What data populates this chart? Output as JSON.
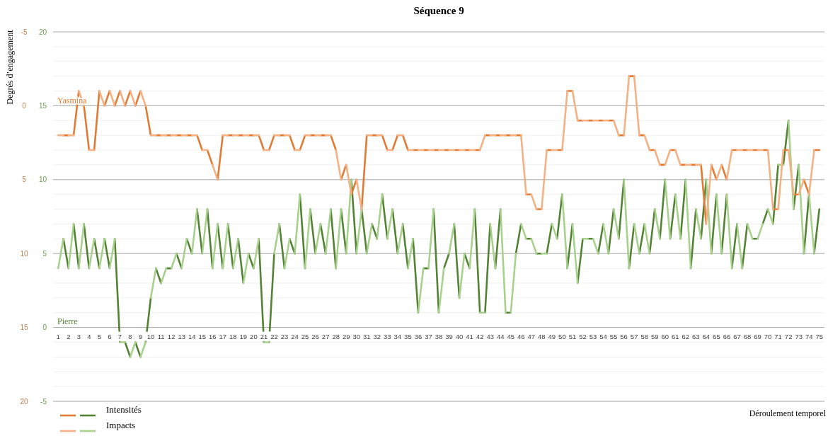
{
  "chart_data": {
    "type": "line",
    "title": "Séquence 9",
    "xlabel": "Déroulement temporel",
    "ylabel": "Degrés d’engagement",
    "xlim": [
      0.5,
      75.5
    ],
    "xticks": [
      1,
      2,
      3,
      4,
      5,
      6,
      7,
      8,
      9,
      10,
      11,
      12,
      13,
      14,
      15,
      16,
      17,
      18,
      19,
      20,
      21,
      22,
      23,
      24,
      25,
      26,
      27,
      28,
      29,
      30,
      31,
      32,
      33,
      34,
      35,
      36,
      37,
      38,
      39,
      40,
      41,
      42,
      43,
      44,
      45,
      46,
      47,
      48,
      49,
      50,
      51,
      52,
      53,
      54,
      55,
      56,
      57,
      58,
      59,
      60,
      61,
      62,
      63,
      64,
      65,
      66,
      67,
      68,
      69,
      70,
      71,
      72,
      73,
      74,
      75
    ],
    "ylim": [
      20,
      -5
    ],
    "yticks": [
      -5,
      {
        "value": -4,
        "label": null
      },
      {
        "value": -3,
        "label": null
      },
      {
        "value": -2,
        "label": null
      },
      {
        "value": -1,
        "label": null
      },
      0,
      {
        "value": 1,
        "label": null
      },
      {
        "value": 2,
        "label": null
      },
      {
        "value": 3,
        "label": null
      },
      {
        "value": 4,
        "label": null
      },
      5,
      {
        "value": 6,
        "label": null
      },
      {
        "value": 7,
        "label": null
      },
      {
        "value": 8,
        "label": null
      },
      {
        "value": 9,
        "label": null
      },
      10,
      {
        "value": 11,
        "label": null
      },
      {
        "value": 12,
        "label": null
      },
      {
        "value": 13,
        "label": null
      },
      {
        "value": 14,
        "label": null
      },
      15,
      {
        "value": 16,
        "label": null
      },
      {
        "value": 17,
        "label": null
      },
      {
        "value": 18,
        "label": null
      },
      {
        "value": 19,
        "label": null
      },
      20
    ],
    "y2lim": [
      -5,
      20
    ],
    "y2ticks": [
      -5,
      0,
      5,
      10,
      15,
      20
    ],
    "grid": "y",
    "legend": "bottom left",
    "line_style": "solid",
    "marker": "none",
    "annotations": [
      "Yasmina",
      "Pierre"
    ],
    "series": [
      {
        "name": "Intensités",
        "color": "#548235",
        "axis": "y2",
        "x": [
          1.5,
          2,
          2.25,
          2.5,
          3,
          3.25,
          3.5,
          4,
          4.25,
          4.5,
          5,
          5.25,
          5.5,
          6,
          6.25,
          6.5,
          7,
          7.25,
          7.5,
          8,
          8.25,
          8.5,
          9,
          9.25,
          9.5,
          10,
          10.25,
          10.5,
          11,
          11.25,
          11.5,
          12,
          12.25,
          12.5,
          13,
          13.25,
          13.5,
          14,
          14.25,
          14.5,
          15,
          15.25,
          15.5,
          16,
          16.25,
          16.5,
          17,
          17.25,
          17.5,
          18,
          18.25,
          18.5,
          19,
          19.25,
          19.5,
          20,
          20.25,
          20.5,
          21,
          21.25,
          21.5,
          22,
          22.25,
          22.5,
          23,
          23.25,
          23.5,
          24,
          24.25,
          24.5,
          25,
          25.25,
          25.5,
          26,
          26.25,
          26.5,
          27,
          27.25,
          27.5,
          28,
          28.25,
          28.5,
          29,
          29.25,
          29.5,
          30,
          30.25,
          30.5,
          31,
          31.25,
          31.5,
          32,
          32.25,
          32.5,
          33,
          33.25,
          33.5,
          34,
          34.25,
          34.5,
          35,
          35.25,
          35.5,
          36,
          36.25,
          36.5,
          37,
          37.25,
          37.5,
          38,
          38.25,
          38.5,
          39,
          39.25,
          39.5,
          40,
          40.25,
          40.5,
          41,
          41.25,
          41.5,
          42,
          42.25,
          42.5,
          43,
          43.25,
          43.5,
          44,
          44.25,
          44.5,
          45,
          45.25,
          45.5,
          46,
          46.25,
          46.5,
          47,
          47.25,
          47.5,
          48,
          48.25,
          48.5,
          49,
          49.25,
          49.5,
          50,
          50.25,
          50.5,
          51,
          51.25,
          51.5,
          52,
          52.25,
          52.5,
          53,
          53.25,
          53.5,
          54,
          54.25,
          54.5,
          55,
          55.25,
          55.5,
          56,
          56.25,
          56.5,
          57,
          57.25,
          57.5,
          58,
          58.25,
          58.5,
          59,
          59.25,
          59.5,
          60,
          60.25,
          60.5,
          61,
          61.25,
          61.5,
          62,
          62.25,
          62.5,
          63,
          63.25,
          63.5,
          64,
          64.25,
          64.5,
          65,
          65.25,
          65.5,
          66,
          66.25,
          66.5,
          67,
          67.25,
          67.5,
          68,
          68.25,
          68.5,
          69,
          69.25,
          69.5,
          70,
          70.25,
          70.5,
          71,
          71.25,
          71.5,
          72,
          72.25,
          72.5,
          73,
          73.25,
          73.5,
          74,
          74.25,
          74.5,
          75
        ],
        "values": [
          6,
          4,
          null,
          7,
          4,
          null,
          7,
          4,
          null,
          6,
          4,
          null,
          6,
          4,
          null,
          6,
          -1,
          null,
          -1,
          -2,
          null,
          -1,
          -2,
          null,
          -1,
          2,
          null,
          4,
          3,
          null,
          4,
          4,
          null,
          5,
          4,
          null,
          6,
          5,
          null,
          8,
          5,
          null,
          8,
          4,
          null,
          7,
          4,
          null,
          7,
          4,
          null,
          6,
          3,
          null,
          5,
          4,
          null,
          6,
          -1,
          null,
          -1,
          5,
          null,
          7,
          4,
          null,
          6,
          5,
          null,
          9,
          4,
          null,
          8,
          5,
          null,
          7,
          5,
          null,
          8,
          4,
          null,
          8,
          5,
          null,
          10,
          5,
          null,
          8,
          5,
          null,
          7,
          6,
          null,
          9,
          6,
          null,
          8,
          5,
          null,
          7,
          4,
          null,
          6,
          1,
          null,
          4,
          4,
          null,
          8,
          1,
          null,
          4,
          5,
          null,
          7,
          2,
          null,
          5,
          4,
          null,
          8,
          1,
          null,
          1,
          7,
          null,
          4,
          8,
          null,
          1,
          1,
          null,
          5,
          7,
          null,
          6,
          6,
          null,
          5,
          5,
          null,
          5,
          7,
          null,
          6,
          9,
          null,
          4,
          7,
          null,
          3,
          6,
          null,
          6,
          6,
          null,
          5,
          7,
          null,
          5,
          8,
          null,
          6,
          10,
          null,
          4,
          7,
          null,
          5,
          7,
          null,
          5,
          8,
          null,
          6,
          10,
          null,
          6,
          9,
          null,
          6,
          10,
          null,
          4,
          8,
          null,
          6,
          10,
          null,
          5,
          9,
          null,
          5,
          9,
          null,
          4,
          7,
          null,
          4,
          7,
          null,
          6,
          6,
          null,
          7,
          8,
          null,
          7,
          11,
          null,
          11,
          14,
          null,
          8,
          11,
          null,
          5,
          9,
          null,
          5,
          8
        ]
      },
      {
        "name": "Impacts",
        "color": "#a9d18e",
        "axis": "y2",
        "x": [
          1,
          1.5,
          1.75,
          2,
          2.5,
          2.75,
          3,
          3.5,
          3.75,
          4,
          4.5,
          4.75,
          5,
          5.5,
          5.75,
          6,
          6.5,
          6.75,
          7,
          7.5,
          7.75,
          8,
          8.5,
          8.75,
          9,
          9.5,
          9.75,
          10,
          10.5,
          10.75,
          11,
          11.5,
          11.75,
          12,
          12.5,
          12.75,
          13,
          13.5,
          13.75,
          14,
          14.5,
          14.75,
          15,
          15.5,
          15.75,
          16,
          16.5,
          16.75,
          17,
          17.5,
          17.75,
          18,
          18.5,
          18.75,
          19,
          19.5,
          19.75,
          20,
          20.5,
          20.75,
          21,
          21.5,
          21.75,
          22,
          22.5,
          22.75,
          23,
          23.5,
          23.75,
          24,
          24.5,
          24.75,
          25,
          25.5,
          25.75,
          26,
          26.5,
          26.75,
          27,
          27.5,
          27.75,
          28,
          28.5,
          28.75,
          29,
          29.5,
          29.75,
          30,
          30.5,
          30.75,
          31,
          31.5,
          31.75,
          32,
          32.5,
          32.75,
          33,
          33.5,
          33.75,
          34,
          34.5,
          34.75,
          35,
          35.5,
          35.75,
          36,
          36.5,
          36.75,
          37,
          37.5,
          37.75,
          38,
          38.5,
          38.75,
          39,
          39.5,
          39.75,
          40,
          40.5,
          40.75,
          41,
          41.5,
          41.75,
          42,
          42.5,
          42.75,
          43,
          43.5,
          43.75,
          44,
          44.5,
          44.75,
          45,
          45.5,
          45.75,
          46,
          46.5,
          46.75,
          47,
          47.5,
          47.75,
          48,
          48.5,
          48.75,
          49,
          49.5,
          49.75,
          50,
          50.5,
          50.75,
          51,
          51.5,
          51.75,
          52,
          52.5,
          52.75,
          53,
          53.5,
          53.75,
          54,
          54.5,
          54.75,
          55,
          55.5,
          55.75,
          56,
          56.5,
          56.75,
          57,
          57.5,
          57.75,
          58,
          58.5,
          58.75,
          59,
          59.5,
          59.75,
          60,
          60.5,
          60.75,
          61,
          61.5,
          61.75,
          62,
          62.5,
          62.75,
          63,
          63.5,
          63.75,
          64,
          64.5,
          64.75,
          65,
          65.5,
          65.75,
          66,
          66.5,
          66.75,
          67,
          67.5,
          67.75,
          68,
          68.5,
          68.75,
          69,
          69.5,
          69.75,
          70,
          70.5,
          70.75,
          71,
          71.5,
          71.75,
          72,
          72.5,
          72.75,
          73,
          73.5,
          73.75,
          74,
          74.5
        ],
        "values": [
          4,
          6,
          null,
          4,
          7,
          null,
          4,
          7,
          null,
          4,
          6,
          null,
          4,
          6,
          null,
          4,
          6,
          null,
          -1,
          -1,
          null,
          -2,
          -1,
          null,
          -2,
          -1,
          null,
          2,
          4,
          null,
          3,
          4,
          null,
          4,
          5,
          null,
          4,
          6,
          null,
          5,
          8,
          null,
          5,
          8,
          null,
          4,
          7,
          null,
          4,
          7,
          null,
          4,
          6,
          null,
          3,
          5,
          null,
          4,
          6,
          null,
          -1,
          -1,
          null,
          5,
          7,
          null,
          4,
          6,
          null,
          5,
          9,
          null,
          4,
          8,
          null,
          5,
          7,
          null,
          5,
          8,
          null,
          4,
          8,
          null,
          5,
          10,
          null,
          5,
          8,
          null,
          5,
          7,
          null,
          6,
          9,
          null,
          6,
          8,
          null,
          5,
          7,
          null,
          4,
          6,
          null,
          1,
          4,
          null,
          4,
          8,
          null,
          1,
          4,
          null,
          5,
          7,
          null,
          2,
          5,
          null,
          4,
          8,
          null,
          1,
          1,
          null,
          7,
          4,
          null,
          8,
          1,
          null,
          1,
          5,
          null,
          7,
          6,
          null,
          6,
          5,
          null,
          5,
          5,
          null,
          7,
          6,
          null,
          9,
          4,
          null,
          7,
          3,
          null,
          6,
          6,
          null,
          6,
          5,
          null,
          7,
          5,
          null,
          8,
          6,
          null,
          10,
          4,
          null,
          7,
          5,
          null,
          7,
          5,
          null,
          8,
          6,
          null,
          10,
          6,
          null,
          9,
          6,
          null,
          10,
          4,
          null,
          8,
          6,
          null,
          10,
          5,
          null,
          9,
          5,
          null,
          9,
          4,
          null,
          7,
          4,
          null,
          7,
          6,
          null,
          6,
          7,
          null,
          8,
          7,
          null,
          11,
          11,
          null,
          14,
          8,
          null,
          11,
          5,
          null,
          9,
          5
        ]
      },
      {
        "color": "#e07b35",
        "x": [
          1.5,
          2,
          2.25,
          2.5,
          3,
          3.25,
          3.5,
          4,
          4.25,
          4.5,
          5,
          5.25,
          5.5,
          6,
          6.25,
          6.5,
          7,
          7.25,
          7.5,
          8,
          8.25,
          8.5,
          9,
          9.25,
          9.5,
          10,
          10.25,
          10.5,
          11,
          11.25,
          11.5,
          12,
          12.25,
          12.5,
          13,
          13.25,
          13.5,
          14,
          14.25,
          14.5,
          15,
          15.25,
          15.5,
          16,
          16.25,
          16.5,
          17,
          17.25,
          17.5,
          18,
          18.25,
          18.5,
          19,
          19.25,
          19.5,
          20,
          20.25,
          20.5,
          21,
          21.25,
          21.5,
          22,
          22.25,
          22.5,
          23,
          23.25,
          23.5,
          24,
          24.25,
          24.5,
          25,
          25.25,
          25.5,
          26,
          26.25,
          26.5,
          27,
          27.25,
          27.5,
          28,
          28.25,
          28.5,
          29,
          29.25,
          29.5,
          30,
          30.25,
          30.5,
          31,
          31.25,
          31.5,
          32,
          32.25,
          32.5,
          33,
          33.25,
          33.5,
          34,
          34.25,
          34.5,
          35,
          35.25,
          35.5,
          36,
          36.25,
          36.5,
          37,
          37.25,
          37.5,
          38,
          38.25,
          38.5,
          39,
          39.25,
          39.5,
          40,
          40.25,
          40.5,
          41,
          41.25,
          41.5,
          42,
          42.25,
          42.5,
          43,
          43.25,
          43.5,
          44,
          44.25,
          44.5,
          45,
          45.25,
          45.5,
          46,
          46.25,
          46.5,
          47,
          47.25,
          47.5,
          48,
          48.25,
          48.5,
          49,
          49.25,
          49.5,
          50,
          50.25,
          50.5,
          51,
          51.25,
          51.5,
          52,
          52.25,
          52.5,
          53,
          53.25,
          53.5,
          54,
          54.25,
          54.5,
          55,
          55.25,
          55.5,
          56,
          56.25,
          56.5,
          57,
          57.25,
          57.5,
          58,
          58.25,
          58.5,
          59,
          59.25,
          59.5,
          60,
          60.25,
          60.5,
          61,
          61.25,
          61.5,
          62,
          62.25,
          62.5,
          63,
          63.25,
          63.5,
          64,
          64.25,
          64.5,
          65,
          65.25,
          65.5,
          66,
          66.25,
          66.5,
          67,
          67.25,
          67.5,
          68,
          68.25,
          68.5,
          69,
          69.25,
          69.5,
          70,
          70.25,
          70.5,
          71,
          71.25,
          71.5,
          72,
          72.25,
          72.5,
          73,
          73.25,
          73.5,
          74,
          74.25,
          74.5,
          75
        ],
        "values": [
          2,
          2,
          null,
          2,
          -1,
          null,
          0,
          3,
          null,
          3,
          -1,
          null,
          0,
          -1,
          null,
          0,
          -1,
          null,
          0,
          -1,
          null,
          0,
          -1,
          null,
          0,
          2,
          null,
          2,
          2,
          null,
          2,
          2,
          null,
          2,
          2,
          null,
          2,
          2,
          null,
          2,
          3,
          null,
          3,
          4,
          null,
          5,
          2,
          null,
          2,
          2,
          null,
          2,
          2,
          null,
          2,
          2,
          null,
          2,
          3,
          null,
          3,
          2,
          null,
          2,
          2,
          null,
          2,
          3,
          null,
          3,
          2,
          null,
          2,
          2,
          null,
          2,
          2,
          null,
          2,
          3,
          null,
          5,
          4,
          null,
          6,
          5,
          null,
          7,
          2,
          null,
          2,
          2,
          null,
          2,
          3,
          null,
          3,
          2,
          null,
          2,
          3,
          null,
          3,
          3,
          null,
          3,
          3,
          null,
          3,
          3,
          null,
          3,
          3,
          null,
          3,
          3,
          null,
          3,
          3,
          null,
          3,
          3,
          null,
          2,
          2,
          null,
          2,
          2,
          null,
          2,
          2,
          null,
          2,
          2,
          null,
          6,
          6,
          null,
          7,
          7,
          null,
          3,
          3,
          null,
          3,
          3,
          null,
          -1,
          -1,
          null,
          1,
          1,
          null,
          1,
          1,
          null,
          1,
          1,
          null,
          1,
          1,
          null,
          2,
          2,
          null,
          -2,
          -2,
          null,
          2,
          2,
          null,
          3,
          3,
          null,
          4,
          4,
          null,
          3,
          3,
          null,
          4,
          4,
          null,
          4,
          4,
          null,
          4,
          8,
          null,
          4,
          5,
          null,
          4,
          5,
          null,
          3,
          3,
          null,
          3,
          3,
          null,
          3,
          3,
          null,
          3,
          3,
          null,
          7,
          7,
          null,
          3,
          3,
          null,
          6,
          6,
          null,
          5,
          6,
          null,
          3,
          3
        ]
      },
      {
        "color": "#f4b183",
        "x": [
          1,
          1.5,
          1.75,
          2,
          2.5,
          2.75,
          3,
          3.5,
          3.75,
          4,
          4.5,
          4.75,
          5,
          5.5,
          5.75,
          6,
          6.5,
          6.75,
          7,
          7.5,
          7.75,
          8,
          8.5,
          8.75,
          9,
          9.5,
          9.75,
          10,
          10.5,
          10.75,
          11,
          11.5,
          11.75,
          12,
          12.5,
          12.75,
          13,
          13.5,
          13.75,
          14,
          14.5,
          14.75,
          15,
          15.5,
          15.75,
          16,
          16.5,
          16.75,
          17,
          17.5,
          17.75,
          18,
          18.5,
          18.75,
          19,
          19.5,
          19.75,
          20,
          20.5,
          20.75,
          21,
          21.5,
          21.75,
          22,
          22.5,
          22.75,
          23,
          23.5,
          23.75,
          24,
          24.5,
          24.75,
          25,
          25.5,
          25.75,
          26,
          26.5,
          26.75,
          27,
          27.5,
          27.75,
          28,
          28.5,
          28.75,
          29,
          29.5,
          29.75,
          30,
          30.5,
          30.75,
          31,
          31.5,
          31.75,
          32,
          32.5,
          32.75,
          33,
          33.5,
          33.75,
          34,
          34.5,
          34.75,
          35,
          35.5,
          35.75,
          36,
          36.5,
          36.75,
          37,
          37.5,
          37.75,
          38,
          38.5,
          38.75,
          39,
          39.5,
          39.75,
          40,
          40.5,
          40.75,
          41,
          41.5,
          41.75,
          42,
          42.5,
          42.75,
          43,
          43.5,
          43.75,
          44,
          44.5,
          44.75,
          45,
          45.5,
          45.75,
          46,
          46.5,
          46.75,
          47,
          47.5,
          47.75,
          48,
          48.5,
          48.75,
          49,
          49.5,
          49.75,
          50,
          50.5,
          50.75,
          51,
          51.5,
          51.75,
          52,
          52.5,
          52.75,
          53,
          53.5,
          53.75,
          54,
          54.5,
          54.75,
          55,
          55.5,
          55.75,
          56,
          56.5,
          56.75,
          57,
          57.5,
          57.75,
          58,
          58.5,
          58.75,
          59,
          59.5,
          59.75,
          60,
          60.5,
          60.75,
          61,
          61.5,
          61.75,
          62,
          62.5,
          62.75,
          63,
          63.5,
          63.75,
          64,
          64.5,
          64.75,
          65,
          65.5,
          65.75,
          66,
          66.5,
          66.75,
          67,
          67.5,
          67.75,
          68,
          68.5,
          68.75,
          69,
          69.5,
          69.75,
          70,
          70.5,
          70.75,
          71,
          71.5,
          71.75,
          72,
          72.5,
          72.75,
          73,
          73.5,
          73.75,
          74,
          74.5
        ],
        "values": [
          2,
          2,
          null,
          2,
          2,
          null,
          -1,
          0,
          null,
          3,
          3,
          null,
          -1,
          0,
          null,
          -1,
          0,
          null,
          -1,
          0,
          null,
          -1,
          0,
          null,
          -1,
          0,
          null,
          2,
          2,
          null,
          2,
          2,
          null,
          2,
          2,
          null,
          2,
          2,
          null,
          2,
          2,
          null,
          3,
          3,
          null,
          4,
          5,
          null,
          2,
          2,
          null,
          2,
          2,
          null,
          2,
          2,
          null,
          2,
          2,
          null,
          3,
          3,
          null,
          2,
          2,
          null,
          2,
          2,
          null,
          3,
          3,
          null,
          2,
          2,
          null,
          2,
          2,
          null,
          2,
          2,
          null,
          3,
          5,
          null,
          4,
          6,
          null,
          5,
          7,
          null,
          2,
          2,
          null,
          2,
          2,
          null,
          3,
          3,
          null,
          2,
          2,
          null,
          3,
          3,
          null,
          3,
          3,
          null,
          3,
          3,
          null,
          3,
          3,
          null,
          3,
          3,
          null,
          3,
          3,
          null,
          3,
          3,
          null,
          3,
          2,
          null,
          2,
          2,
          null,
          2,
          2,
          null,
          2,
          2,
          null,
          2,
          6,
          null,
          6,
          7,
          null,
          7,
          3,
          null,
          3,
          3,
          null,
          3,
          -1,
          null,
          -1,
          1,
          null,
          1,
          1,
          null,
          1,
          1,
          null,
          1,
          1,
          null,
          1,
          2,
          null,
          2,
          -2,
          null,
          -2,
          2,
          null,
          2,
          3,
          null,
          3,
          4,
          null,
          4,
          3,
          null,
          3,
          4,
          null,
          4,
          4,
          null,
          4,
          4,
          null,
          8,
          4,
          null,
          5,
          4,
          null,
          5,
          3,
          null,
          3,
          3,
          null,
          3,
          3,
          null,
          3,
          3,
          null,
          3,
          7,
          null,
          7,
          3,
          null,
          3,
          6,
          null,
          6,
          5,
          null,
          6,
          3
        ]
      }
    ]
  }
}
